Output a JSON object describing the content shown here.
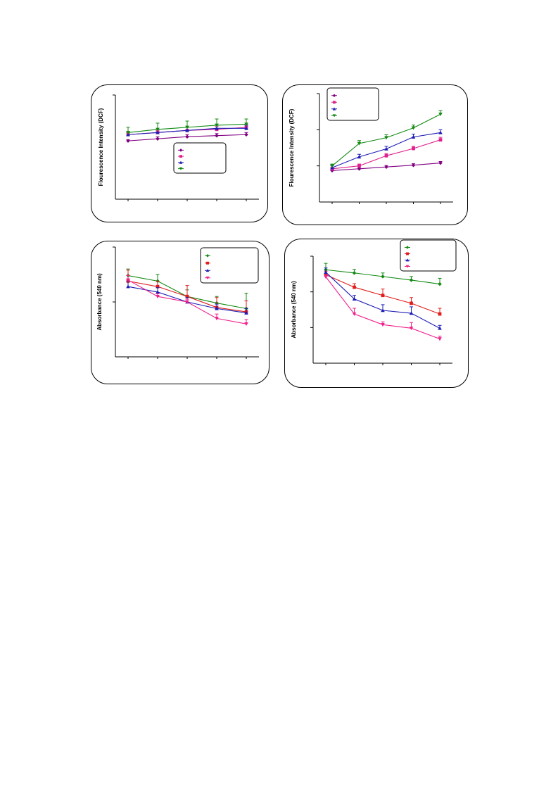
{
  "chart_data": [
    {
      "type": "line",
      "ylabel": "Flourescence Intensity (DCF)",
      "x": [
        1,
        2,
        3,
        4,
        5
      ],
      "ylim": [
        0,
        1.0
      ],
      "grid": false,
      "legend": "bottom-right",
      "series": [
        {
          "color": "#800080",
          "marker": "diamond",
          "values": [
            0.56,
            0.58,
            0.6,
            0.61,
            0.62
          ],
          "errors": [
            0.01,
            0.02,
            0.02,
            0.02,
            0.02
          ]
        },
        {
          "color": "#e0208c",
          "marker": "square",
          "values": [
            0.62,
            0.64,
            0.66,
            0.67,
            0.69
          ],
          "errors": [
            0.02,
            0.02,
            0.03,
            0.03,
            0.03
          ]
        },
        {
          "color": "#1c1cb4",
          "marker": "triangle-up",
          "values": [
            0.62,
            0.64,
            0.66,
            0.68,
            0.68
          ],
          "errors": [
            0.03,
            0.03,
            0.03,
            0.03,
            0.03
          ]
        },
        {
          "color": "#138a13",
          "marker": "triangle-down",
          "values": [
            0.64,
            0.67,
            0.69,
            0.71,
            0.72
          ],
          "errors": [
            0.05,
            0.06,
            0.06,
            0.06,
            0.05
          ]
        }
      ]
    },
    {
      "type": "line",
      "ylabel": "Flourescence Intensity (DCF)",
      "x": [
        1,
        2,
        3,
        4,
        5
      ],
      "ylim": [
        0,
        3
      ],
      "grid": false,
      "legend": "top-left",
      "series": [
        {
          "color": "#800080",
          "marker": "diamond",
          "values": [
            0.87,
            0.92,
            0.97,
            1.02,
            1.08
          ],
          "errors": [
            0.04,
            0.04,
            0.04,
            0.04,
            0.04
          ]
        },
        {
          "color": "#e0208c",
          "marker": "square",
          "values": [
            0.92,
            1.0,
            1.28,
            1.48,
            1.72
          ],
          "errors": [
            0.04,
            0.05,
            0.06,
            0.06,
            0.07
          ]
        },
        {
          "color": "#1c1cb4",
          "marker": "triangle-up",
          "values": [
            0.95,
            1.25,
            1.47,
            1.8,
            1.92
          ],
          "errors": [
            0.05,
            0.07,
            0.07,
            0.08,
            0.08
          ]
        },
        {
          "color": "#138a13",
          "marker": "triangle-down",
          "values": [
            1.0,
            1.62,
            1.78,
            2.05,
            2.43
          ],
          "errors": [
            0.05,
            0.08,
            0.08,
            0.08,
            0.1
          ]
        }
      ]
    },
    {
      "type": "line",
      "ylabel": "Absorbance (540 nm)",
      "x": [
        1,
        2,
        3,
        4,
        5
      ],
      "ylim": [
        0,
        2
      ],
      "grid": false,
      "legend": "top-right",
      "series": [
        {
          "color": "#138a13",
          "marker": "diamond",
          "values": [
            1.48,
            1.38,
            1.1,
            0.98,
            0.88
          ],
          "errors": [
            0.12,
            0.12,
            0.12,
            0.12,
            0.28
          ]
        },
        {
          "color": "#e01c1c",
          "marker": "square",
          "values": [
            1.38,
            1.28,
            1.1,
            0.9,
            0.82
          ],
          "errors": [
            0.2,
            0.1,
            0.2,
            0.18,
            0.2
          ]
        },
        {
          "color": "#1c1cb4",
          "marker": "triangle-up",
          "values": [
            1.28,
            1.18,
            1.0,
            0.88,
            0.8
          ],
          "errors": [
            0.1,
            0.08,
            0.08,
            0.08,
            0.08
          ]
        },
        {
          "color": "#f0208c",
          "marker": "triangle-down",
          "values": [
            1.4,
            1.1,
            1.0,
            0.7,
            0.6
          ],
          "errors": [
            0.08,
            0.05,
            0.05,
            0.08,
            0.08
          ]
        }
      ]
    },
    {
      "type": "line",
      "ylabel": "Absorbance (540 nm)",
      "x": [
        1,
        2,
        3,
        4,
        5
      ],
      "ylim": [
        0,
        3
      ],
      "grid": false,
      "legend": "top-right",
      "series": [
        {
          "color": "#138a13",
          "marker": "diamond",
          "values": [
            2.62,
            2.53,
            2.43,
            2.33,
            2.22
          ],
          "errors": [
            0.18,
            0.1,
            0.1,
            0.1,
            0.16
          ]
        },
        {
          "color": "#e01c1c",
          "marker": "square",
          "values": [
            2.48,
            2.13,
            1.9,
            1.68,
            1.38
          ],
          "errors": [
            0.1,
            0.1,
            0.18,
            0.16,
            0.16
          ]
        },
        {
          "color": "#1c1cb4",
          "marker": "triangle-up",
          "values": [
            2.55,
            1.8,
            1.48,
            1.4,
            0.98
          ],
          "errors": [
            0.12,
            0.1,
            0.16,
            0.18,
            0.08
          ]
        },
        {
          "color": "#f0208c",
          "marker": "triangle-down",
          "values": [
            2.42,
            1.38,
            1.08,
            0.98,
            0.68
          ],
          "errors": [
            0.05,
            0.16,
            0.08,
            0.16,
            0.08
          ]
        }
      ]
    }
  ]
}
